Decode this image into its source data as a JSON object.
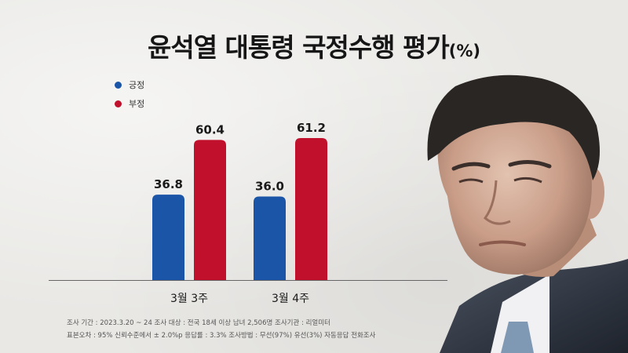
{
  "title": "윤석열 대통령 국정수행 평가",
  "title_unit": "(%)",
  "colors": {
    "positive": "#1b55a8",
    "negative": "#c1102b",
    "axis": "#666666"
  },
  "chart_data": {
    "type": "bar",
    "title": "윤석열 대통령 국정수행 평가(%)",
    "categories": [
      "3월 3주",
      "3월 4주"
    ],
    "series": [
      {
        "name": "긍정",
        "values": [
          36.8,
          36.0
        ]
      },
      {
        "name": "부정",
        "values": [
          60.4,
          61.2
        ]
      }
    ],
    "xlabel": "",
    "ylabel": "",
    "ylim": [
      0,
      70
    ],
    "grid": false,
    "legend": "top-left"
  },
  "notes": {
    "line1": "조사 기간 : 2023.3.20 ~ 24   조사 대상 : 전국 18세 이상 남녀 2,506명    조사기관 : 리얼미터",
    "line2": "표본오차 : 95% 신뢰수준에서 ± 2.0%p    응답률 : 3.3%    조사방법 : 무선(97%) 유선(3%) 자동응답 전화조사"
  }
}
